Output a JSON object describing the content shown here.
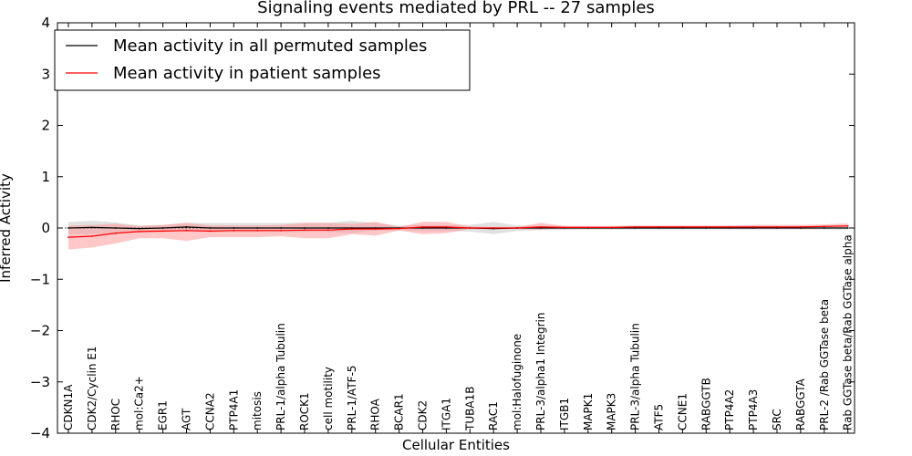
{
  "chart_data": {
    "type": "line",
    "title": "Signaling events mediated by PRL -- 27 samples",
    "xlabel": "Cellular Entities",
    "ylabel": "Inferred Activity",
    "ylim": [
      -4,
      4
    ],
    "yticks": [
      -4,
      -3,
      -2,
      -1,
      0,
      1,
      2,
      3,
      4
    ],
    "grid": false,
    "legend_position": "top-left",
    "categories": [
      "CDKN1A",
      "CDK2/Cyclin E1",
      "RHOC",
      "mol:Ca2+",
      "EGR1",
      "AGT",
      "CCNA2",
      "PTP4A1",
      "mitosis",
      "PRL-1/alpha Tubulin",
      "ROCK1",
      "cell motility",
      "PRL-1/ATF-5",
      "RHOA",
      "BCAR1",
      "CDK2",
      "ITGA1",
      "TUBA1B",
      "RAC1",
      "mol:Halofuginone",
      "PRL-3/alpha1 Integrin",
      "ITGB1",
      "MAPK1",
      "MAPK3",
      "PRL-3/alpha Tubulin",
      "ATF5",
      "CCNE1",
      "RABGGTB",
      "PTP4A2",
      "PTP4A3",
      "SRC",
      "RABGGTA",
      "PRL-2 /Rab GGTase beta",
      "Rab GGTase beta/Rab GGTase alpha"
    ],
    "series": [
      {
        "name": "Mean activity in all permuted samples",
        "color": "#000000",
        "band_color": "#c8c8c8",
        "values": [
          0.0,
          0.01,
          0.0,
          -0.01,
          0.0,
          0.02,
          0.0,
          0.0,
          0.0,
          0.0,
          0.0,
          0.0,
          0.0,
          0.0,
          0.0,
          0.0,
          0.0,
          0.0,
          -0.01,
          0.0,
          0.0,
          0.0,
          0.0,
          0.0,
          0.0,
          0.0,
          0.0,
          0.0,
          0.0,
          0.0,
          0.0,
          0.0,
          0.0,
          0.0
        ],
        "lower": [
          -0.12,
          -0.12,
          -0.1,
          -0.08,
          -0.07,
          -0.06,
          -0.08,
          -0.08,
          -0.08,
          -0.08,
          -0.08,
          -0.08,
          -0.1,
          -0.05,
          -0.05,
          -0.06,
          -0.06,
          -0.07,
          -0.12,
          -0.06,
          -0.04,
          -0.04,
          -0.03,
          -0.03,
          -0.03,
          -0.03,
          -0.03,
          -0.03,
          -0.03,
          -0.03,
          -0.03,
          -0.03,
          -0.03,
          -0.03
        ],
        "upper": [
          0.12,
          0.14,
          0.11,
          0.05,
          0.06,
          0.1,
          0.1,
          0.1,
          0.1,
          0.1,
          0.1,
          0.1,
          0.14,
          0.1,
          0.05,
          0.06,
          0.06,
          0.06,
          0.12,
          0.05,
          0.04,
          0.04,
          0.03,
          0.03,
          0.03,
          0.03,
          0.03,
          0.03,
          0.03,
          0.03,
          0.03,
          0.03,
          0.03,
          0.03
        ]
      },
      {
        "name": "Mean activity in patient samples",
        "color": "#ff0000",
        "band_color": "#ff9090",
        "values": [
          -0.18,
          -0.16,
          -0.1,
          -0.07,
          -0.06,
          -0.05,
          -0.06,
          -0.05,
          -0.05,
          -0.05,
          -0.04,
          -0.04,
          -0.02,
          -0.02,
          -0.01,
          0.02,
          0.02,
          0.0,
          0.0,
          0.0,
          0.02,
          0.01,
          0.01,
          0.01,
          0.02,
          0.02,
          0.02,
          0.02,
          0.02,
          0.02,
          0.02,
          0.02,
          0.03,
          0.04
        ],
        "lower": [
          -0.42,
          -0.38,
          -0.3,
          -0.2,
          -0.2,
          -0.25,
          -0.18,
          -0.18,
          -0.18,
          -0.16,
          -0.2,
          -0.2,
          -0.12,
          -0.15,
          -0.05,
          -0.12,
          -0.1,
          -0.02,
          -0.02,
          -0.02,
          -0.03,
          0.0,
          0.0,
          0.0,
          0.01,
          0.01,
          0.01,
          0.01,
          0.01,
          0.01,
          0.01,
          0.01,
          0.02,
          0.02
        ],
        "upper": [
          0.05,
          0.06,
          0.08,
          0.04,
          0.06,
          0.1,
          0.05,
          0.05,
          0.05,
          0.06,
          0.1,
          0.1,
          0.08,
          0.12,
          0.02,
          0.12,
          0.12,
          0.03,
          0.02,
          0.02,
          0.1,
          0.04,
          0.04,
          0.04,
          0.05,
          0.05,
          0.05,
          0.05,
          0.05,
          0.06,
          0.06,
          0.06,
          0.07,
          0.09
        ]
      }
    ]
  }
}
